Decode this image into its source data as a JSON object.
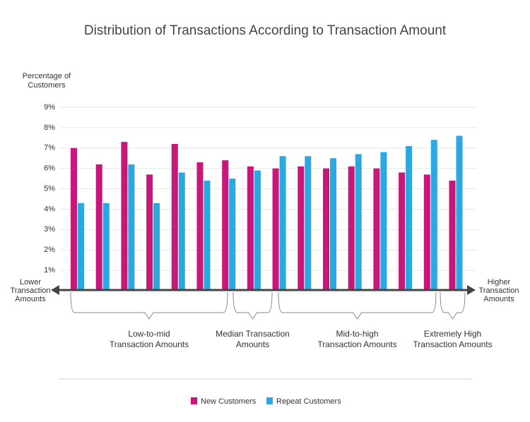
{
  "chart_data": {
    "type": "bar",
    "title": "Distribution of Transactions According to Transaction Amount",
    "y_axis_label": [
      "Percentage of",
      "Customers"
    ],
    "x_axis_left_label": [
      "Lower",
      "Transaction",
      "Amounts"
    ],
    "x_axis_right_label": [
      "Higher",
      "Transaction",
      "Amounts"
    ],
    "annotations": [
      [
        "Low-to-mid",
        "Transaction Amounts"
      ],
      [
        "Median Transaction",
        "Amounts"
      ],
      [
        "Mid-to-high",
        "Transaction Amounts"
      ],
      [
        "Extremely High",
        "Transaction Amounts"
      ]
    ],
    "categories": [
      null,
      null,
      null,
      null,
      null,
      null,
      null,
      null,
      null,
      null,
      null,
      null,
      null,
      null,
      null,
      null
    ],
    "series": [
      {
        "name": "New Customers",
        "color": "#c8177b",
        "values": [
          7.0,
          6.2,
          7.3,
          5.7,
          7.2,
          6.3,
          6.4,
          6.1,
          6.0,
          6.1,
          6.0,
          6.1,
          6.0,
          5.8,
          5.7,
          5.4
        ]
      },
      {
        "name": "Repeat Customers",
        "color": "#2ba8df",
        "values": [
          4.3,
          4.3,
          6.2,
          4.3,
          5.8,
          5.4,
          5.5,
          5.9,
          6.6,
          6.6,
          6.5,
          6.7,
          6.8,
          7.1,
          7.4,
          7.6
        ]
      }
    ],
    "ylim": [
      0,
      9
    ],
    "yticks": [
      {
        "value": 1,
        "label": "1%"
      },
      {
        "value": 2,
        "label": "2%"
      },
      {
        "value": 3,
        "label": "3%"
      },
      {
        "value": 4,
        "label": "4%"
      },
      {
        "value": 5,
        "label": "5%"
      },
      {
        "value": 6,
        "label": "6%"
      },
      {
        "value": 7,
        "label": "7%"
      },
      {
        "value": 8,
        "label": "8%"
      },
      {
        "value": 9,
        "label": "9%"
      }
    ],
    "grid": true
  }
}
